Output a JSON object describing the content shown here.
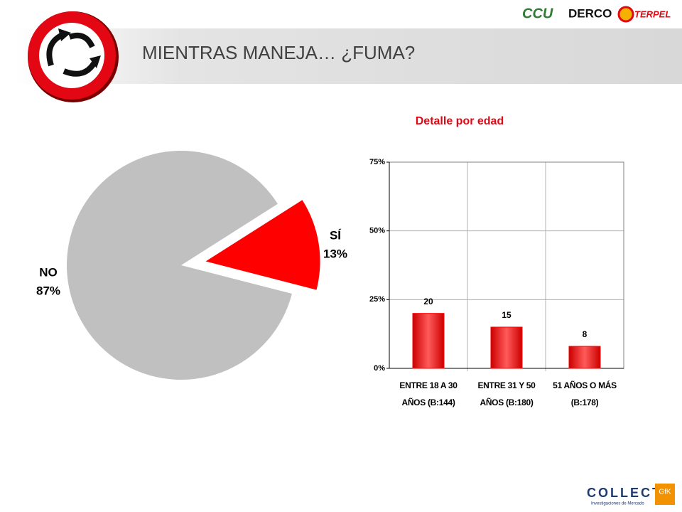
{
  "header": {
    "title": "MIENTRAS MANEJA… ¿FUMA?",
    "brands": [
      "CCU",
      "DERCO",
      "TERPEL"
    ]
  },
  "footer": {
    "brand": "COLLECT",
    "tagline": "Investigaciones de Mercado",
    "partner": "GfK"
  },
  "chart_data": [
    {
      "type": "pie",
      "categories": [
        "NO",
        "SÍ"
      ],
      "values": [
        87,
        13
      ],
      "value_labels": [
        "87%",
        "13%"
      ],
      "colors": [
        "#c0c0c0",
        "#ff0000"
      ],
      "exploded": [
        false,
        true
      ]
    },
    {
      "type": "bar",
      "title": "Detalle por edad",
      "categories": [
        "ENTRE 18 A 30 AÑOS (B:144)",
        "ENTRE 31 Y 50 AÑOS (B:180)",
        "51 AÑOS O MÁS (B:178)"
      ],
      "values": [
        20,
        15,
        8
      ],
      "color": "#ff0000",
      "ylim": [
        0,
        75
      ],
      "yticks": [
        {
          "value": 0,
          "label": "0%"
        },
        {
          "value": 25,
          "label": "25%"
        },
        {
          "value": 50,
          "label": "50%"
        },
        {
          "value": 75,
          "label": "75%"
        }
      ],
      "grid": true
    }
  ]
}
